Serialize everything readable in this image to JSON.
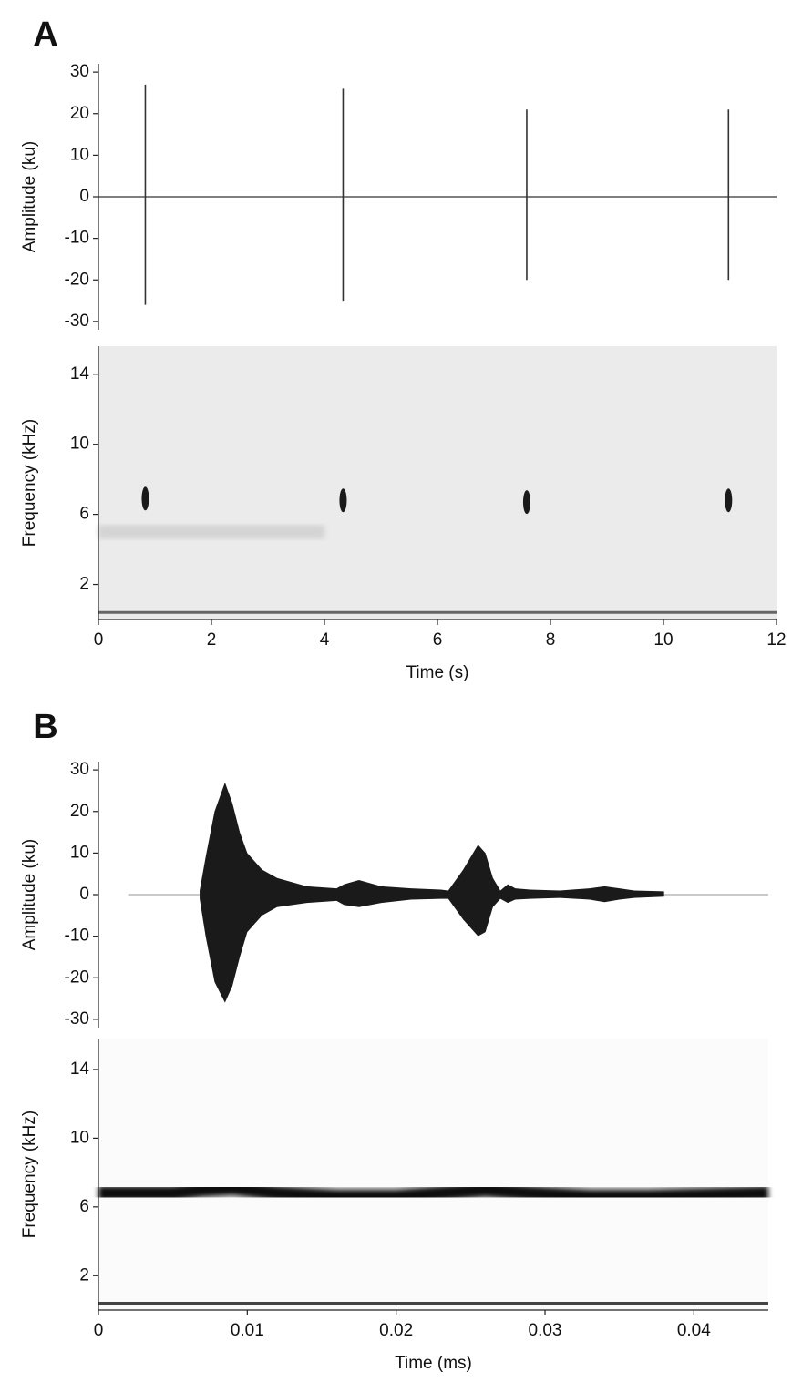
{
  "chart_data": [
    {
      "type": "waveform",
      "panel": "A",
      "ylabel": "Amplitude (ku)",
      "xlim": [
        0,
        12
      ],
      "ylim": [
        -32,
        32
      ],
      "yticks": [
        -30,
        -20,
        -10,
        0,
        10,
        20,
        30
      ],
      "x": [
        0.83,
        4.33,
        7.58,
        11.15
      ],
      "series": [
        {
          "color": "#333333",
          "values": [
            27,
            26,
            21,
            21
          ]
        },
        {
          "color": "#333333",
          "values": [
            -26,
            -25,
            -20,
            -20
          ]
        }
      ]
    },
    {
      "type": "spectrogram",
      "ylabel": "Frequency (kHz)",
      "xlabel": "Time (s)",
      "xlim": [
        0,
        12
      ],
      "xticks": [
        0,
        2,
        4,
        6,
        8,
        10,
        12
      ],
      "ylim": [
        0,
        15.6
      ],
      "yticks": [
        2,
        6,
        10,
        14
      ],
      "x": [
        0.83,
        4.33,
        7.58,
        11.15
      ],
      "values": [
        6.9,
        6.8,
        6.7,
        6.8
      ],
      "color": "#1a1a1a"
    },
    {
      "type": "envelope",
      "panel": "B",
      "ylabel": "Amplitude (ku)",
      "xlim": [
        0,
        0.045
      ],
      "ylim": [
        -32,
        32
      ],
      "yticks": [
        -30,
        -20,
        -10,
        0,
        10,
        20,
        30
      ],
      "x": [
        0.0068,
        0.0072,
        0.0078,
        0.0085,
        0.009,
        0.0095,
        0.01,
        0.011,
        0.012,
        0.014,
        0.016,
        0.0165,
        0.0175,
        0.019,
        0.021,
        0.023,
        0.0235,
        0.0245,
        0.0255,
        0.026,
        0.0265,
        0.027,
        0.0275,
        0.028,
        0.029,
        0.031,
        0.033,
        0.034,
        0.035,
        0.036,
        0.038
      ],
      "series": [
        {
          "color": "#1a1a1a",
          "values": [
            1,
            9,
            20,
            27,
            22,
            15,
            10,
            6,
            4,
            2,
            1.5,
            2.5,
            3.5,
            2,
            1.5,
            1.2,
            1,
            6,
            12,
            10,
            4,
            1,
            2.5,
            1.5,
            1.2,
            1,
            1.5,
            2,
            1.5,
            1,
            0.8
          ]
        },
        {
          "color": "#1a1a1a",
          "values": [
            -1,
            -10,
            -21,
            -26,
            -22,
            -15,
            -9,
            -5,
            -3,
            -2,
            -1.5,
            -2.5,
            -3,
            -2,
            -1.2,
            -1,
            -1,
            -6,
            -10,
            -9,
            -3,
            -1,
            -2,
            -1.2,
            -1,
            -0.8,
            -1.2,
            -1.8,
            -1.2,
            -0.8,
            -0.5
          ]
        }
      ]
    },
    {
      "type": "band",
      "ylabel": "Frequency (kHz)",
      "xlabel": "Time (ms)",
      "xlim": [
        0,
        0.045
      ],
      "xticks": [
        0,
        0.01,
        0.02,
        0.03,
        0.04
      ],
      "ylim": [
        0,
        15.8
      ],
      "yticks": [
        2,
        6,
        10,
        14
      ],
      "x": [
        0,
        0.005,
        0.007,
        0.009,
        0.012,
        0.016,
        0.02,
        0.023,
        0.026,
        0.029,
        0.033,
        0.037,
        0.041,
        0.045
      ],
      "values": [
        6.8,
        6.8,
        7.0,
        7.1,
        6.8,
        6.6,
        6.6,
        6.8,
        7.0,
        6.8,
        6.6,
        6.6,
        6.7,
        6.8
      ],
      "color": "#0d0d0d"
    }
  ]
}
